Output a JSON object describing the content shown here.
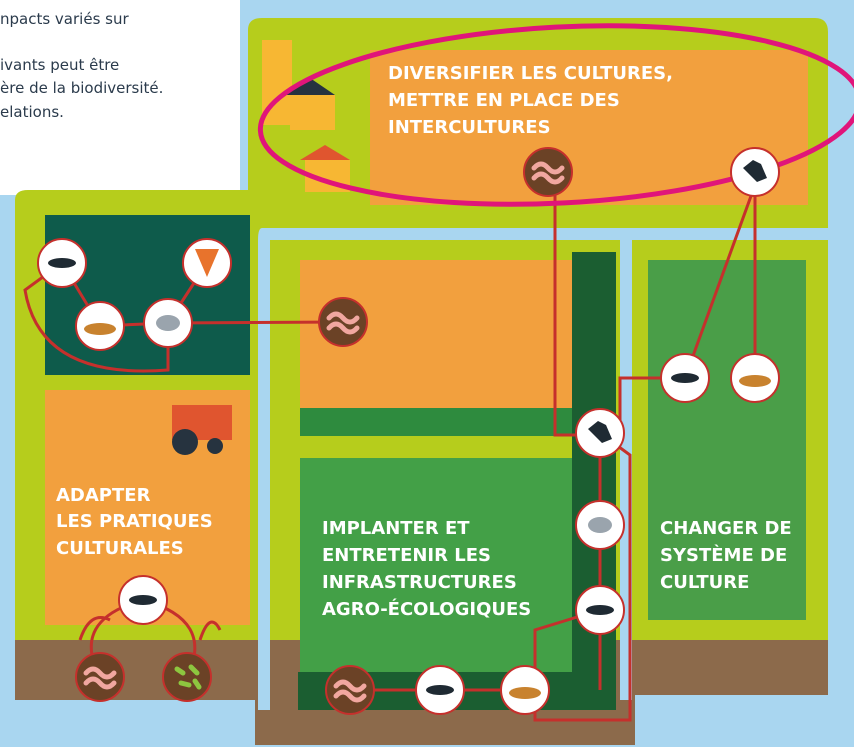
{
  "intro": {
    "lines": [
      "npacts variés sur",
      "ivants peut être",
      "ère de la biodiversité.",
      "elations."
    ]
  },
  "labels": [
    {
      "lines": [
        "DIVERSIFIER LES CULTURES,",
        "METTRE EN PLACE DES",
        "INTERCULTURES"
      ]
    },
    {
      "lines": [
        "ADAPTER",
        "LES PRATIQUES",
        "CULTURALES"
      ]
    },
    {
      "lines": [
        "IMPLANTER ET",
        "ENTRETENIR LES",
        "INFRASTRUCTURES",
        "AGRO-ÉCOLOGIQUES"
      ]
    },
    {
      "lines": [
        "CHANGER DE",
        "SYSTÈME DE",
        "CULTURE"
      ]
    }
  ]
}
